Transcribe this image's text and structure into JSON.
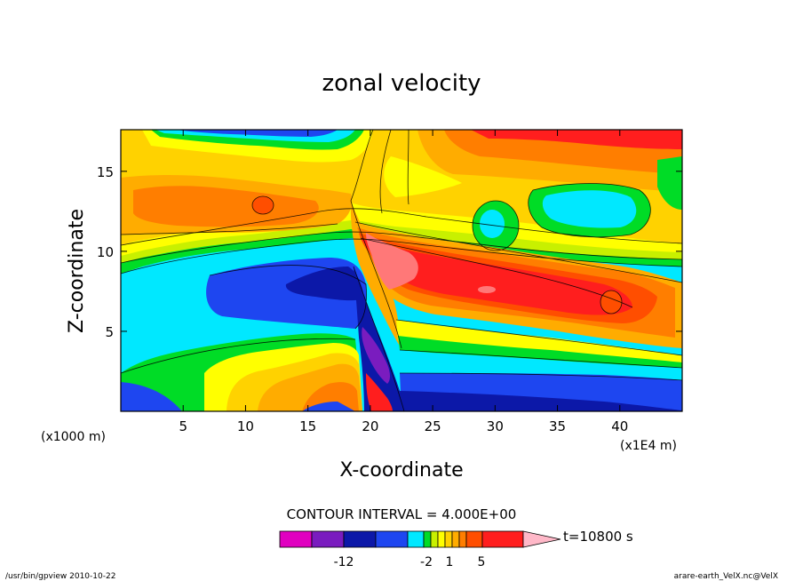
{
  "chart_data": {
    "type": "heatmap",
    "title": "zonal velocity",
    "xlabel": "X-coordinate",
    "ylabel": "Z-coordinate",
    "x_unit_label": "(x1000 m)",
    "x_unit_label2": "(x1E4 m)",
    "xlim": [
      0,
      45
    ],
    "ylim": [
      0,
      17.6
    ],
    "xticks": [
      5,
      10,
      15,
      20,
      25,
      30,
      35,
      40
    ],
    "yticks": [
      5,
      10,
      15
    ],
    "contour_interval_text": "CONTOUR INTERVAL = 4.000E+00",
    "time_text": "t=10800 s",
    "colorbar": {
      "tick_labels": [
        "-12",
        "-2",
        "1",
        "5"
      ],
      "colors": [
        "#e000c0",
        "#7a1cbf",
        "#0c18a8",
        "#1e46f0",
        "#00e8ff",
        "#00dc26",
        "#c8f000",
        "#ffff00",
        "#ffd200",
        "#ffac00",
        "#ff7e00",
        "#ff4e00",
        "#ff1e1e",
        "#ff7878",
        "#ffb8c8"
      ]
    },
    "regions": [
      {
        "level": "cyan",
        "color": "#00e8ff",
        "bounds": {
          "x": [
            0,
            45
          ],
          "z": [
            0,
            17.6
          ]
        }
      },
      {
        "level": "blue",
        "color": "#1e46f0",
        "bounds": {
          "x": [
            21,
            45
          ],
          "z": [
            0,
            2.2
          ]
        }
      },
      {
        "level": "dark-blue",
        "color": "#0c18a8",
        "bounds": {
          "x": [
            20,
            45
          ],
          "z": [
            0,
            1
          ]
        }
      },
      {
        "level": "orange",
        "color": "#ffac00",
        "bounds": {
          "x": [
            0,
            22
          ],
          "z": [
            11,
            14
          ]
        }
      },
      {
        "level": "red",
        "color": "#ff1e1e",
        "bounds": {
          "x": [
            21,
            38
          ],
          "z": [
            6.5,
            10
          ]
        }
      },
      {
        "level": "pink",
        "color": "#ff7878",
        "bounds": {
          "x": [
            20,
            24
          ],
          "z": [
            7.5,
            10.5
          ]
        }
      },
      {
        "level": "purple",
        "color": "#7a1cbf",
        "bounds": {
          "x": [
            19.5,
            21.5
          ],
          "z": [
            3,
            4.8
          ]
        }
      }
    ]
  },
  "footer": {
    "left": "/usr/bin/gpview  2010-10-22",
    "right": "arare-earth_VelX.nc@VelX"
  }
}
